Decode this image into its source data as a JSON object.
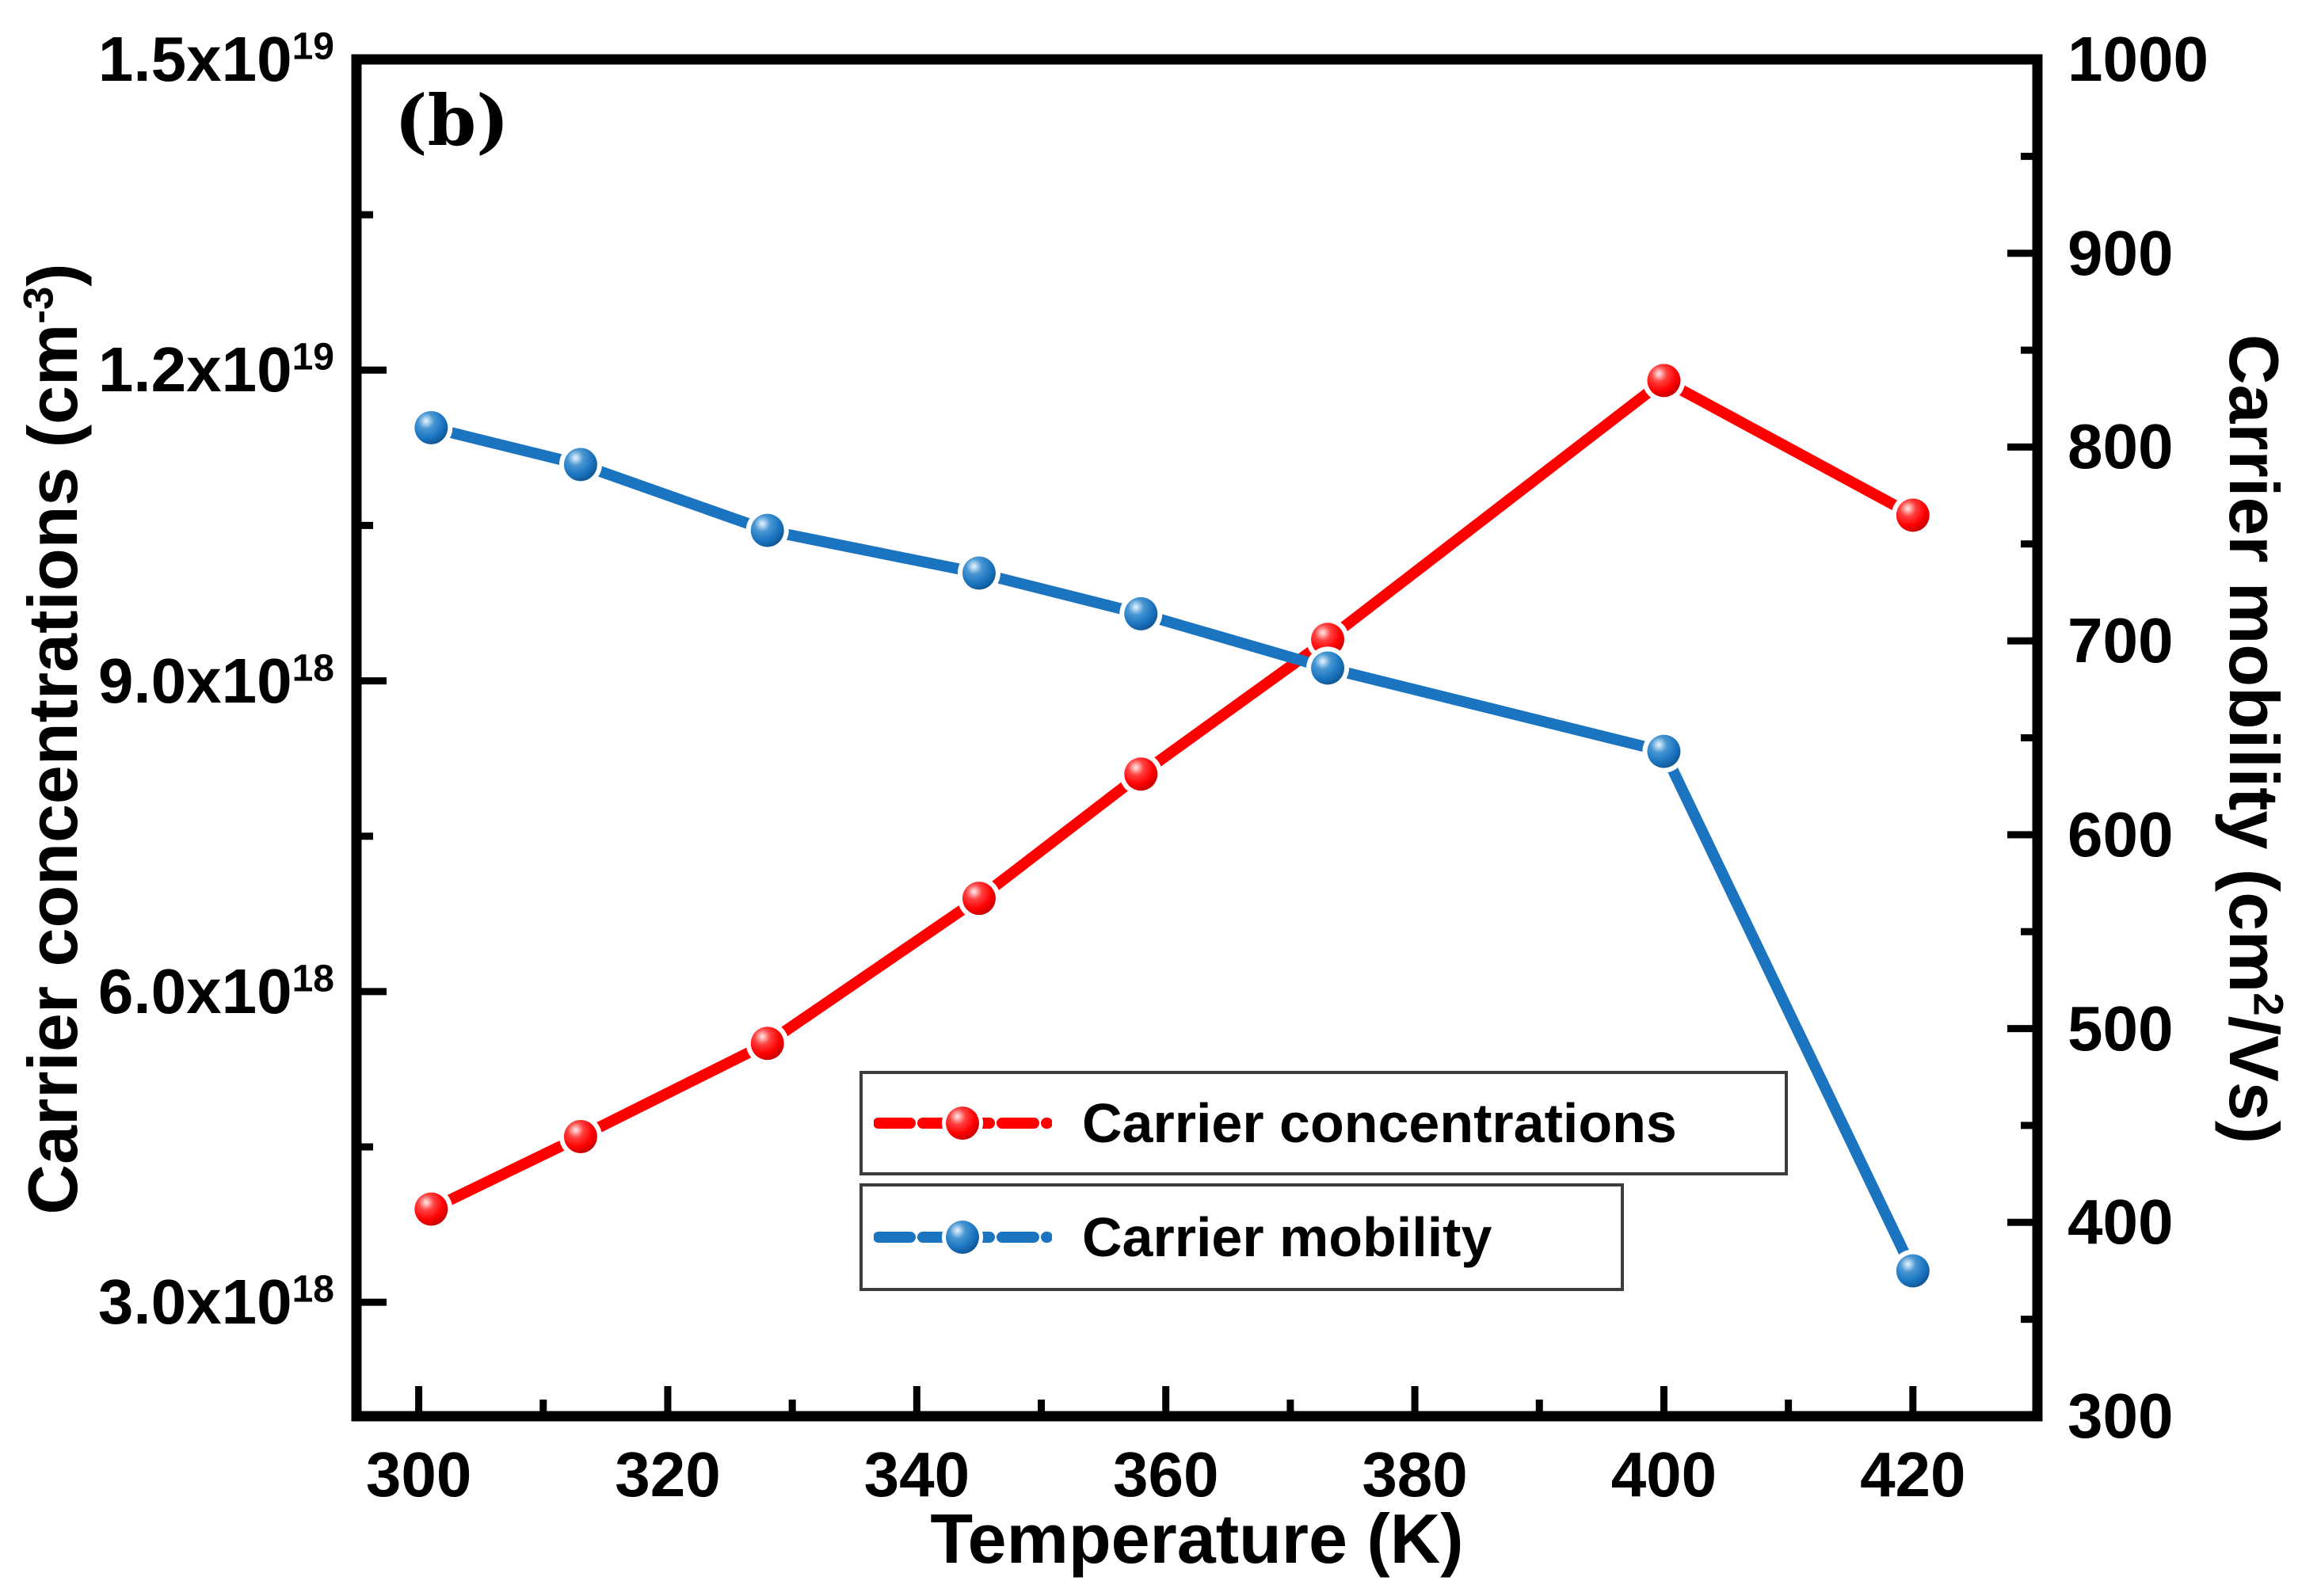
{
  "figure_label": "(b)",
  "colors": {
    "concentration": "#ff0000",
    "mobility": "#1b74c0",
    "axis": "#000000",
    "legend_border": "#3c3c3c",
    "background": "#ffffff"
  },
  "chart_data": {
    "type": "line",
    "x": [
      301,
      313,
      328,
      345,
      358,
      373,
      400,
      420
    ],
    "series": [
      {
        "name": "Carrier concentrations",
        "axis": "left",
        "color": "#ff0000",
        "marker": "sphere",
        "marker_gradient": {
          "highlight": "#ffecec",
          "mid": "#ff4040",
          "base": "#ff0000",
          "dark": "#b50000"
        },
        "values": [
          3.9e+18,
          4.6e+18,
          5.5e+18,
          6.9e+18,
          8.1e+18,
          9.4e+18,
          1.19e+19,
          1.06e+19
        ]
      },
      {
        "name": "Carrier mobility",
        "axis": "right",
        "color": "#1b74c0",
        "marker": "sphere",
        "marker_gradient": {
          "highlight": "#eaf5ff",
          "mid": "#4796d2",
          "base": "#1b74c0",
          "dark": "#0d4e86"
        },
        "values": [
          810,
          791,
          757,
          735,
          714,
          686,
          643,
          375
        ]
      }
    ],
    "xlabel": "Temperature (K)",
    "ylabel_left": "Carrier concentrations (cm^-3)",
    "ylabel_right": "Carrier mobility (cm^2/Vs)",
    "xlim": [
      295,
      430
    ],
    "x_major_ticks": [
      300,
      320,
      340,
      360,
      380,
      400,
      420
    ],
    "x_minor_ticks": [
      310,
      330,
      350,
      370,
      390,
      410
    ],
    "ylim_left": [
      1.9e+18,
      1.5e+19
    ],
    "left_major_ticks": [
      {
        "value": 1.5e+19,
        "label": "1.5x10^19"
      },
      {
        "value": 1.2e+19,
        "label": "1.2x10^19"
      },
      {
        "value": 9e+18,
        "label": "9.0x10^18"
      },
      {
        "value": 6e+18,
        "label": "6.0x10^18"
      },
      {
        "value": 3e+18,
        "label": "3.0x10^18"
      }
    ],
    "left_minor_ticks": [
      1.35e+19,
      1.05e+19,
      7.5e+18,
      4.5e+18
    ],
    "ylim_right": [
      300,
      1000
    ],
    "right_major_ticks": [
      {
        "value": 1000,
        "label": "1000"
      },
      {
        "value": 900,
        "label": "900"
      },
      {
        "value": 800,
        "label": "800"
      },
      {
        "value": 700,
        "label": "700"
      },
      {
        "value": 600,
        "label": "600"
      },
      {
        "value": 500,
        "label": "500"
      },
      {
        "value": 400,
        "label": "400"
      },
      {
        "value": 300,
        "label": "300"
      }
    ],
    "right_minor_ticks": [
      950,
      850,
      750,
      650,
      550,
      450,
      350
    ],
    "grid": false,
    "legend_position": "lower-center-inside"
  },
  "legend": {
    "items": [
      {
        "label": "Carrier concentrations",
        "series": "concentration",
        "color": "#ff0000"
      },
      {
        "label": "Carrier mobility",
        "series": "mobility",
        "color": "#1b74c0"
      }
    ]
  }
}
